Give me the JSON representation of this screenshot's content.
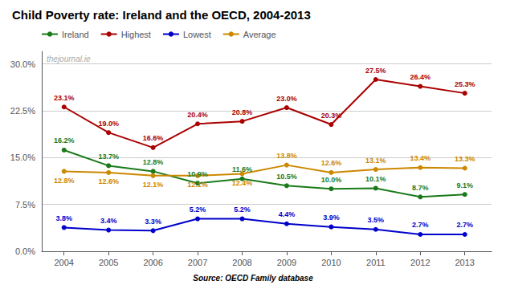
{
  "chart_data": {
    "type": "line",
    "title": "Child Poverty rate: Ireland and the OECD, 2004-2013",
    "annotations": [
      "thejournal.ie",
      "Source: OECD Family database"
    ],
    "x": [
      2004,
      2005,
      2006,
      2007,
      2008,
      2009,
      2010,
      2011,
      2012,
      2013
    ],
    "xlim": [
      2003.5,
      2013.6
    ],
    "xticks": [
      2004,
      2005,
      2006,
      2007,
      2008,
      2009,
      2010,
      2011,
      2012,
      2013
    ],
    "ylim": [
      0.0,
      32.0
    ],
    "yticks": [
      {
        "value": 0.0,
        "label": "0.0%"
      },
      {
        "value": 7.5,
        "label": "7.5%"
      },
      {
        "value": 15.0,
        "label": "15.0%"
      },
      {
        "value": 22.5,
        "label": "22.5%"
      },
      {
        "value": 30.0,
        "label": "30.0%"
      }
    ],
    "grid": true,
    "legend": "upper left",
    "data_labels": true,
    "marker": "circle",
    "series": [
      {
        "name": "Ireland",
        "color": "#1a7a1a",
        "values": [
          16.2,
          13.7,
          12.8,
          10.9,
          11.6,
          10.5,
          10.0,
          10.1,
          8.7,
          9.1
        ],
        "value_labels": [
          "16.2%",
          "13.7%",
          "12.8%",
          "10.9%",
          "11.6%",
          "10.5%",
          "10.0%",
          "10.1%",
          "8.7%",
          "9.1%"
        ]
      },
      {
        "name": "Highest",
        "color": "#aa0000",
        "values": [
          23.1,
          19.0,
          16.6,
          20.4,
          20.8,
          23.0,
          20.3,
          27.5,
          26.4,
          25.3
        ],
        "value_labels": [
          "23.1%",
          "19.0%",
          "16.6%",
          "20.4%",
          "20.8%",
          "23.0%",
          "20.3%",
          "27.5%",
          "26.4%",
          "25.3%"
        ]
      },
      {
        "name": "Lowest",
        "color": "#0000cc",
        "values": [
          3.8,
          3.4,
          3.3,
          5.2,
          5.2,
          4.4,
          3.9,
          3.5,
          2.7,
          2.7
        ],
        "value_labels": [
          "3.8%",
          "3.4%",
          "3.3%",
          "5.2%",
          "5.2%",
          "4.4%",
          "3.9%",
          "3.5%",
          "2.7%",
          "2.7%"
        ]
      },
      {
        "name": "Average",
        "color": "#cc8800",
        "values": [
          12.8,
          12.6,
          12.1,
          12.1,
          12.4,
          13.8,
          12.6,
          13.1,
          13.4,
          13.3
        ],
        "value_labels": [
          "12.8%",
          "12.6%",
          "12.1%",
          "12.1%",
          "12.4%",
          "13.8%",
          "12.6%",
          "13.1%",
          "13.4%",
          "13.3%"
        ]
      }
    ]
  }
}
